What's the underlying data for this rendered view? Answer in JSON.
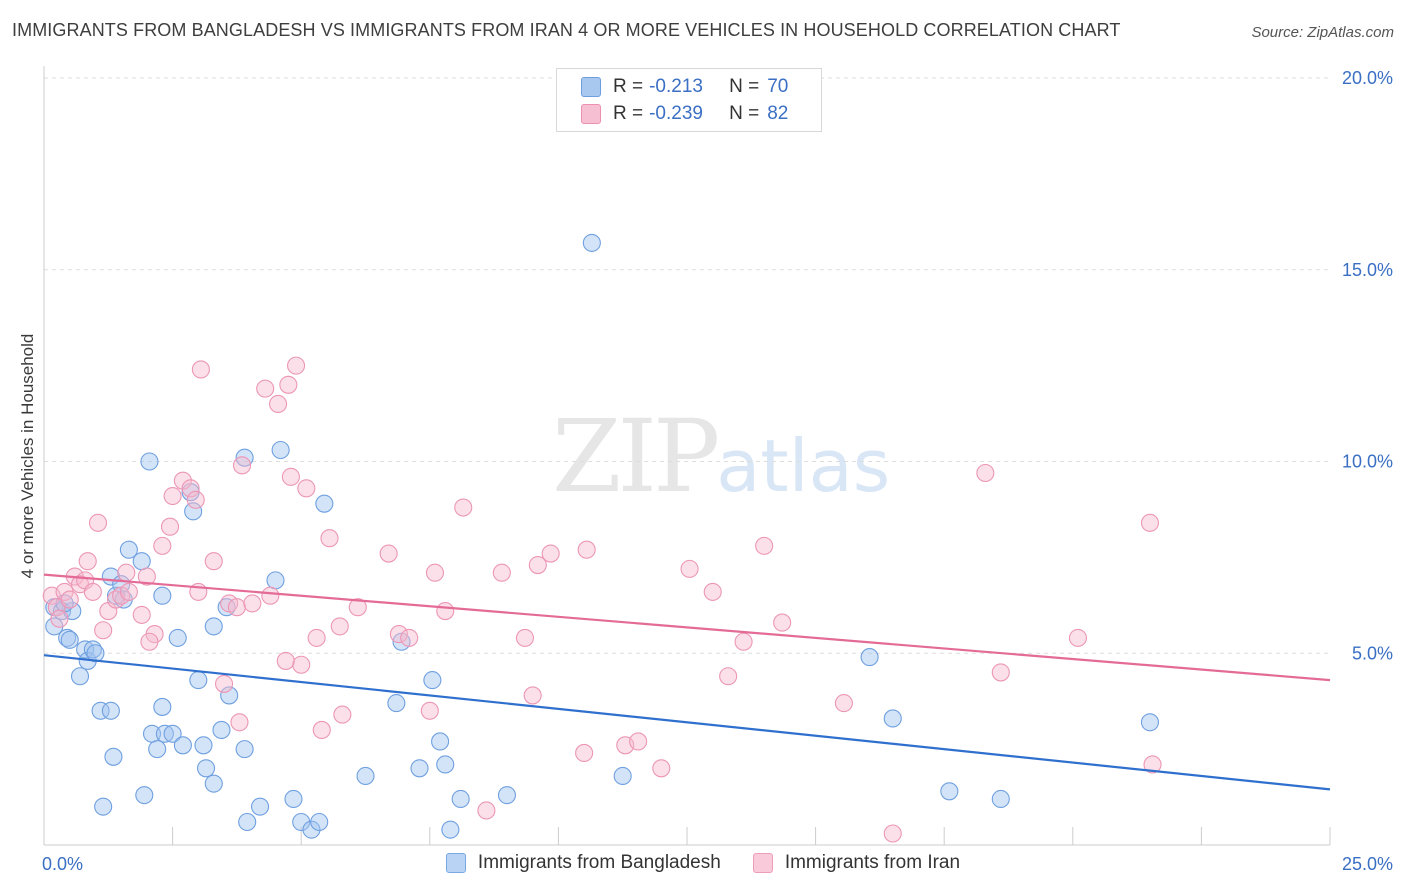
{
  "header": {
    "title": "IMMIGRANTS FROM BANGLADESH VS IMMIGRANTS FROM IRAN 4 OR MORE VEHICLES IN HOUSEHOLD CORRELATION CHART",
    "source": "Source: ZipAtlas.com"
  },
  "watermark": {
    "zip": "ZIP",
    "atlas": "atlas"
  },
  "legend": {
    "rows": [
      {
        "r_label": "R =",
        "r_value": "-0.213",
        "n_label": "N =",
        "n_value": "70",
        "color": "#a9c8f0",
        "border": "#6d9fe0"
      },
      {
        "r_label": "R =",
        "r_value": "-0.239",
        "n_label": "N =",
        "n_value": "82",
        "color": "#f7bfd2",
        "border": "#ec8fb0"
      }
    ]
  },
  "bottom_legend": {
    "items": [
      {
        "label": "Immigrants from Bangladesh",
        "color": "#b8d3f3",
        "border": "#7aa8e2"
      },
      {
        "label": "Immigrants from Iran",
        "color": "#f9cad9",
        "border": "#ee9dba"
      }
    ]
  },
  "chart_data": {
    "type": "scatter",
    "title": "IMMIGRANTS FROM BANGLADESH VS IMMIGRANTS FROM IRAN 4 OR MORE VEHICLES IN HOUSEHOLD CORRELATION CHART",
    "xlabel": "",
    "ylabel": "4 or more Vehicles in Household",
    "xlim": [
      0,
      25
    ],
    "ylim": [
      0,
      20
    ],
    "x_tick_labels": [
      {
        "value": 0,
        "label": "0.0%"
      },
      {
        "value": 25,
        "label": "25.0%"
      }
    ],
    "y_tick_labels": [
      {
        "value": 5,
        "label": "5.0%"
      },
      {
        "value": 10,
        "label": "10.0%"
      },
      {
        "value": 15,
        "label": "15.0%"
      },
      {
        "value": 20,
        "label": "20.0%"
      }
    ],
    "series": [
      {
        "name": "Immigrants from Bangladesh",
        "color": "#6fa0e0",
        "fill": "rgba(160,196,240,0.45)",
        "trend_color": "#2f6fce",
        "trend": {
          "x0": 0,
          "y0": 4.95,
          "x1": 25,
          "y1": 1.45
        },
        "points": [
          [
            0.2,
            6.2
          ],
          [
            0.2,
            5.7
          ],
          [
            0.35,
            6.1
          ],
          [
            0.45,
            5.4
          ],
          [
            0.5,
            5.35
          ],
          [
            0.55,
            6.1
          ],
          [
            0.7,
            4.4
          ],
          [
            0.8,
            5.1
          ],
          [
            0.85,
            4.8
          ],
          [
            0.95,
            5.1
          ],
          [
            1.0,
            5.0
          ],
          [
            1.1,
            3.5
          ],
          [
            1.15,
            1.0
          ],
          [
            1.3,
            3.5
          ],
          [
            1.35,
            2.3
          ],
          [
            1.3,
            7.0
          ],
          [
            1.4,
            6.5
          ],
          [
            1.5,
            6.8
          ],
          [
            1.65,
            7.7
          ],
          [
            1.9,
            7.4
          ],
          [
            1.95,
            1.3
          ],
          [
            2.1,
            2.9
          ],
          [
            2.2,
            2.5
          ],
          [
            2.3,
            3.6
          ],
          [
            2.35,
            2.9
          ],
          [
            2.5,
            2.9
          ],
          [
            2.6,
            5.4
          ],
          [
            2.7,
            2.6
          ],
          [
            2.85,
            9.2
          ],
          [
            2.9,
            8.7
          ],
          [
            3.0,
            4.3
          ],
          [
            3.1,
            2.6
          ],
          [
            3.15,
            2.0
          ],
          [
            3.3,
            1.6
          ],
          [
            3.3,
            5.7
          ],
          [
            3.45,
            3.0
          ],
          [
            3.6,
            3.9
          ],
          [
            3.9,
            2.5
          ],
          [
            3.95,
            0.6
          ],
          [
            4.2,
            1.0
          ],
          [
            4.5,
            6.9
          ],
          [
            4.6,
            10.3
          ],
          [
            4.85,
            1.2
          ],
          [
            5.0,
            0.6
          ],
          [
            5.2,
            0.4
          ],
          [
            5.35,
            0.6
          ],
          [
            5.45,
            8.9
          ],
          [
            6.25,
            1.8
          ],
          [
            6.85,
            3.7
          ],
          [
            6.95,
            5.3
          ],
          [
            7.3,
            2.0
          ],
          [
            7.55,
            4.3
          ],
          [
            7.7,
            2.7
          ],
          [
            7.8,
            2.1
          ],
          [
            7.9,
            0.4
          ],
          [
            8.1,
            1.2
          ],
          [
            9.0,
            1.3
          ],
          [
            10.65,
            15.7
          ],
          [
            11.25,
            1.8
          ],
          [
            16.05,
            4.9
          ],
          [
            16.5,
            3.3
          ],
          [
            17.6,
            1.4
          ],
          [
            18.6,
            1.2
          ],
          [
            21.5,
            3.2
          ],
          [
            2.05,
            10.0
          ],
          [
            3.9,
            10.1
          ],
          [
            1.55,
            6.4
          ],
          [
            3.55,
            6.2
          ],
          [
            2.3,
            6.5
          ],
          [
            0.4,
            6.3
          ]
        ]
      },
      {
        "name": "Immigrants from Iran",
        "color": "#ec96b5",
        "fill": "rgba(247,186,206,0.45)",
        "trend_color": "#e46b96",
        "trend": {
          "x0": 0,
          "y0": 7.05,
          "x1": 25,
          "y1": 4.3
        },
        "points": [
          [
            0.15,
            6.5
          ],
          [
            0.25,
            6.2
          ],
          [
            0.3,
            5.9
          ],
          [
            0.4,
            6.6
          ],
          [
            0.5,
            6.4
          ],
          [
            0.6,
            7.0
          ],
          [
            0.7,
            6.8
          ],
          [
            0.8,
            6.9
          ],
          [
            0.85,
            7.4
          ],
          [
            0.95,
            6.6
          ],
          [
            1.05,
            8.4
          ],
          [
            1.15,
            5.6
          ],
          [
            1.25,
            6.1
          ],
          [
            1.4,
            6.4
          ],
          [
            1.5,
            6.5
          ],
          [
            1.6,
            7.1
          ],
          [
            1.65,
            6.6
          ],
          [
            1.9,
            6.0
          ],
          [
            2.0,
            7.0
          ],
          [
            2.15,
            5.5
          ],
          [
            2.3,
            7.8
          ],
          [
            2.45,
            8.3
          ],
          [
            2.5,
            9.1
          ],
          [
            2.7,
            9.5
          ],
          [
            2.85,
            9.3
          ],
          [
            2.95,
            9.0
          ],
          [
            3.05,
            12.4
          ],
          [
            3.3,
            7.4
          ],
          [
            3.5,
            4.2
          ],
          [
            3.6,
            6.3
          ],
          [
            3.75,
            6.2
          ],
          [
            3.85,
            9.9
          ],
          [
            4.05,
            6.3
          ],
          [
            4.3,
            11.9
          ],
          [
            4.4,
            6.5
          ],
          [
            4.55,
            11.5
          ],
          [
            4.75,
            12.0
          ],
          [
            4.8,
            9.6
          ],
          [
            4.9,
            12.5
          ],
          [
            5.0,
            4.7
          ],
          [
            5.1,
            9.3
          ],
          [
            5.3,
            5.4
          ],
          [
            5.4,
            3.0
          ],
          [
            5.55,
            8.0
          ],
          [
            5.75,
            5.7
          ],
          [
            5.8,
            3.4
          ],
          [
            6.7,
            7.6
          ],
          [
            6.9,
            5.5
          ],
          [
            7.1,
            5.4
          ],
          [
            7.5,
            3.5
          ],
          [
            7.6,
            7.1
          ],
          [
            7.8,
            6.1
          ],
          [
            8.15,
            8.8
          ],
          [
            8.6,
            0.9
          ],
          [
            8.9,
            7.1
          ],
          [
            9.35,
            5.4
          ],
          [
            9.5,
            3.9
          ],
          [
            9.6,
            7.3
          ],
          [
            9.85,
            7.6
          ],
          [
            10.5,
            2.4
          ],
          [
            10.55,
            7.7
          ],
          [
            11.3,
            2.6
          ],
          [
            11.55,
            2.7
          ],
          [
            12.0,
            2.0
          ],
          [
            12.55,
            7.2
          ],
          [
            13.0,
            6.6
          ],
          [
            13.3,
            4.4
          ],
          [
            13.6,
            5.3
          ],
          [
            14.0,
            7.8
          ],
          [
            14.35,
            5.8
          ],
          [
            15.55,
            3.7
          ],
          [
            16.5,
            0.3
          ],
          [
            18.3,
            9.7
          ],
          [
            18.6,
            4.5
          ],
          [
            20.1,
            5.4
          ],
          [
            21.5,
            8.4
          ],
          [
            21.55,
            2.1
          ],
          [
            4.7,
            4.8
          ],
          [
            2.05,
            5.3
          ],
          [
            3.0,
            6.6
          ],
          [
            6.1,
            6.2
          ],
          [
            3.8,
            3.2
          ]
        ]
      }
    ]
  }
}
